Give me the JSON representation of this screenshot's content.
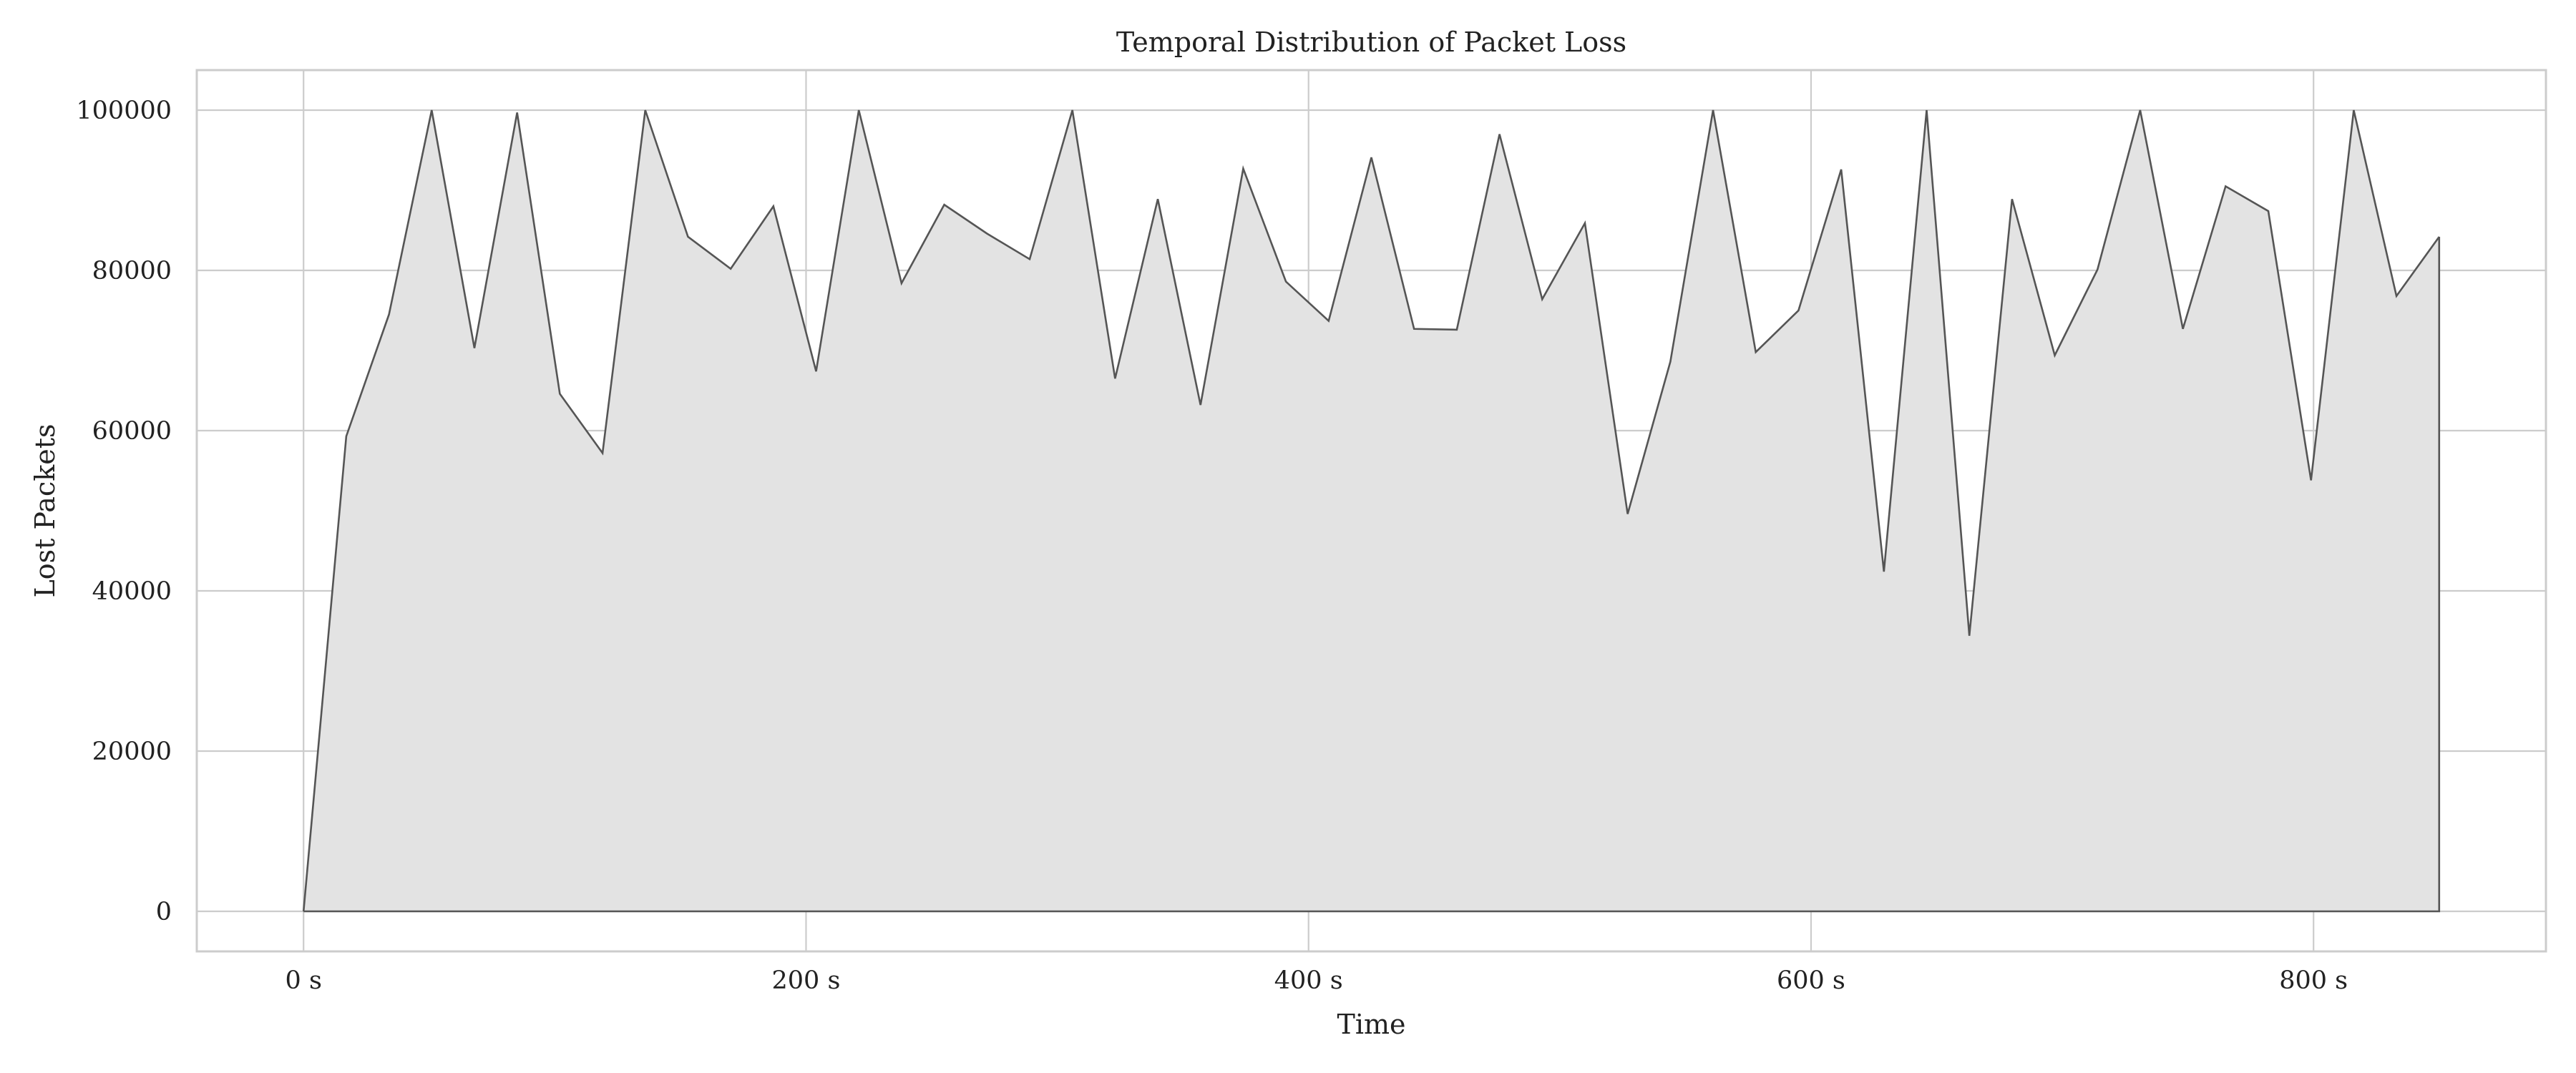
{
  "chart_data": {
    "type": "area",
    "title": "Temporal Distribution of Packet Loss",
    "xlabel": "Time",
    "ylabel": "Lost Packets",
    "xlim": [
      -42.5,
      892.5
    ],
    "ylim": [
      -5000,
      105000
    ],
    "x_ticks": [
      0,
      200,
      400,
      600,
      800
    ],
    "x_tick_labels": [
      "0 s",
      "200 s",
      "400 s",
      "600 s",
      "800 s"
    ],
    "y_ticks": [
      0,
      20000,
      40000,
      60000,
      80000,
      100000
    ],
    "y_tick_labels": [
      "0",
      "20000",
      "40000",
      "60000",
      "80000",
      "100000"
    ],
    "grid": true,
    "legend": "none",
    "series": [
      {
        "x": [
          0,
          17,
          34,
          51,
          68,
          85,
          102,
          119,
          136,
          153,
          170,
          187,
          204,
          221,
          238,
          255,
          272,
          289,
          306,
          323,
          340,
          357,
          374,
          391,
          408,
          425,
          442,
          459,
          476,
          493,
          510,
          527,
          544,
          561,
          578,
          595,
          612,
          629,
          646,
          663,
          680,
          697,
          714,
          731,
          748,
          765,
          782,
          799,
          816,
          833,
          850
        ],
        "values": [
          0,
          59300,
          74500,
          100000,
          70300,
          99700,
          64600,
          57200,
          100000,
          84200,
          80200,
          88000,
          67400,
          100000,
          78400,
          88200,
          84600,
          81400,
          100000,
          66500,
          88900,
          63200,
          92700,
          78600,
          73700,
          94100,
          72700,
          72600,
          97000,
          76400,
          85900,
          49600,
          68600,
          100000,
          69800,
          75000,
          92600,
          42400,
          100000,
          34400,
          88900,
          69400,
          80100,
          100000,
          72700,
          90500,
          87400,
          53800,
          100000,
          76800,
          84200
        ]
      }
    ],
    "colors": {
      "fill": "#e3e3e3",
      "line": "#555555",
      "grid": "#cccccc"
    }
  }
}
